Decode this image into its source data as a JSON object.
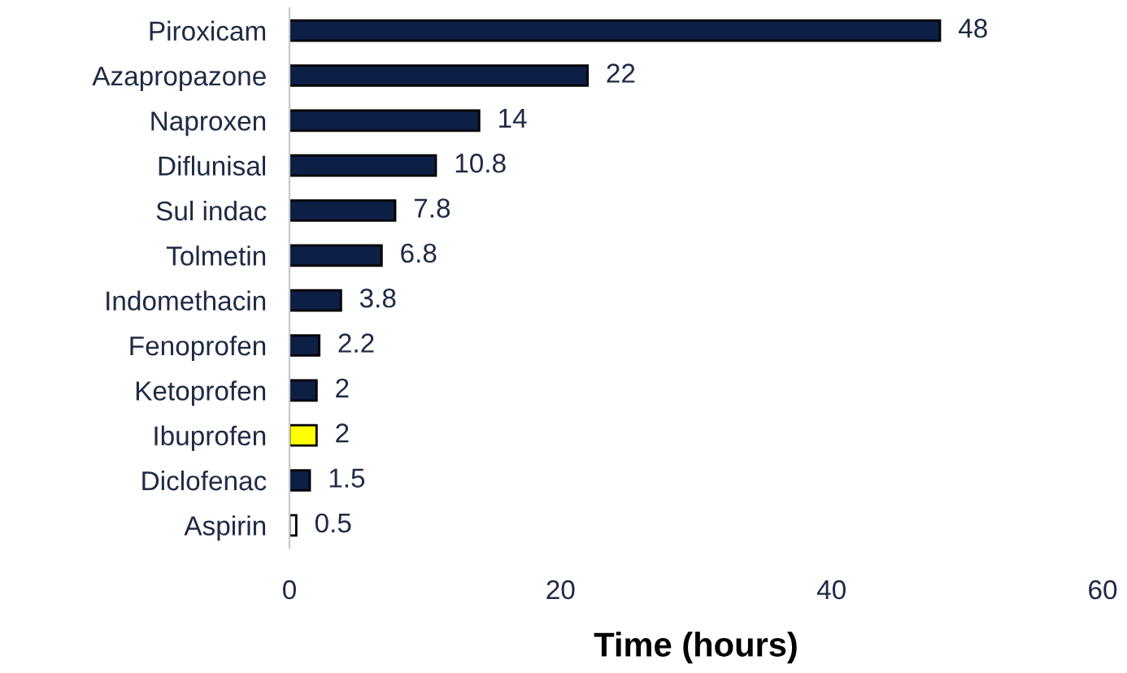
{
  "chart_data": {
    "type": "bar",
    "orientation": "horizontal",
    "xlabel": "Time (hours)",
    "categories": [
      "Piroxicam",
      "Azapropazone",
      "Naproxen",
      "Diflunisal",
      "Sul indac",
      "Tolmetin",
      "Indomethacin",
      "Fenoprofen",
      "Ketoprofen",
      "Ibuprofen",
      "Diclofenac",
      "Aspirin"
    ],
    "values": [
      48,
      22,
      14,
      10.8,
      7.8,
      6.8,
      3.8,
      2.2,
      2,
      2,
      1.5,
      0.5
    ],
    "colors": [
      "#0d1f45",
      "#0d1f45",
      "#0d1f45",
      "#0d1f45",
      "#0d1f45",
      "#0d1f45",
      "#0d1f45",
      "#0d1f45",
      "#0d1f45",
      "#ffff00",
      "#0d1f45",
      "#ffffff"
    ],
    "xlim": [
      0,
      60
    ],
    "xticks": [
      0,
      20,
      40,
      60
    ],
    "grid": false,
    "data_labels": true
  }
}
